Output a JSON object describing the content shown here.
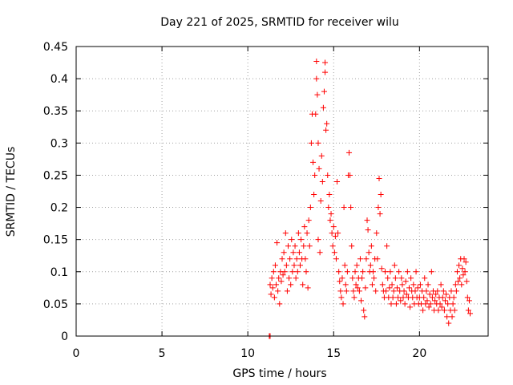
{
  "chart_data": {
    "type": "scatter",
    "title": "Day 221 of 2025, SRMTID for receiver wilu",
    "xlabel": "GPS time / hours",
    "ylabel": "SRMTID / TECUs",
    "xlim": [
      0,
      24
    ],
    "ylim": [
      0,
      0.45
    ],
    "xticks": [
      0,
      5,
      10,
      15,
      20
    ],
    "xtick_labels": [
      "0",
      "5",
      "10",
      "15",
      "20"
    ],
    "yticks": [
      0,
      0.05,
      0.1,
      0.15,
      0.2,
      0.25,
      0.3,
      0.35,
      0.4,
      0.45
    ],
    "ytick_labels": [
      "0",
      "0.05",
      "0.1",
      "0.15",
      "0.2",
      "0.25",
      "0.3",
      "0.35",
      "0.4",
      "0.45"
    ],
    "grid": true,
    "marker": "+",
    "color": "#ff0000",
    "series": [
      {
        "name": "SRMTID",
        "points": [
          [
            11.25,
            0.0
          ],
          [
            11.3,
            0.0
          ],
          [
            11.3,
            0.08
          ],
          [
            11.35,
            0.065
          ],
          [
            11.4,
            0.09
          ],
          [
            11.45,
            0.075
          ],
          [
            11.5,
            0.1
          ],
          [
            11.55,
            0.06
          ],
          [
            11.6,
            0.11
          ],
          [
            11.65,
            0.08
          ],
          [
            11.7,
            0.145
          ],
          [
            11.75,
            0.07
          ],
          [
            11.8,
            0.09
          ],
          [
            11.85,
            0.05
          ],
          [
            11.9,
            0.1
          ],
          [
            11.95,
            0.085
          ],
          [
            12.0,
            0.12
          ],
          [
            12.05,
            0.095
          ],
          [
            12.1,
            0.13
          ],
          [
            12.15,
            0.1
          ],
          [
            12.2,
            0.16
          ],
          [
            12.25,
            0.11
          ],
          [
            12.3,
            0.07
          ],
          [
            12.35,
            0.14
          ],
          [
            12.4,
            0.09
          ],
          [
            12.45,
            0.12
          ],
          [
            12.5,
            0.08
          ],
          [
            12.55,
            0.15
          ],
          [
            12.6,
            0.1
          ],
          [
            12.65,
            0.13
          ],
          [
            12.7,
            0.11
          ],
          [
            12.75,
            0.14
          ],
          [
            12.8,
            0.09
          ],
          [
            12.85,
            0.12
          ],
          [
            12.9,
            0.1
          ],
          [
            12.95,
            0.16
          ],
          [
            13.0,
            0.13
          ],
          [
            13.05,
            0.11
          ],
          [
            13.1,
            0.15
          ],
          [
            13.15,
            0.12
          ],
          [
            13.2,
            0.08
          ],
          [
            13.25,
            0.14
          ],
          [
            13.3,
            0.17
          ],
          [
            13.35,
            0.12
          ],
          [
            13.4,
            0.1
          ],
          [
            13.45,
            0.16
          ],
          [
            13.5,
            0.075
          ],
          [
            13.55,
            0.18
          ],
          [
            13.6,
            0.14
          ],
          [
            13.65,
            0.2
          ],
          [
            13.7,
            0.3
          ],
          [
            13.75,
            0.345
          ],
          [
            13.8,
            0.27
          ],
          [
            13.85,
            0.22
          ],
          [
            13.9,
            0.25
          ],
          [
            13.95,
            0.345
          ],
          [
            14.0,
            0.427
          ],
          [
            14.0,
            0.4
          ],
          [
            14.05,
            0.375
          ],
          [
            14.1,
            0.3
          ],
          [
            14.1,
            0.15
          ],
          [
            14.15,
            0.26
          ],
          [
            14.2,
            0.13
          ],
          [
            14.25,
            0.21
          ],
          [
            14.3,
            0.28
          ],
          [
            14.35,
            0.24
          ],
          [
            14.4,
            0.355
          ],
          [
            14.45,
            0.38
          ],
          [
            14.5,
            0.425
          ],
          [
            14.5,
            0.41
          ],
          [
            14.55,
            0.32
          ],
          [
            14.6,
            0.33
          ],
          [
            14.65,
            0.25
          ],
          [
            14.7,
            0.2
          ],
          [
            14.75,
            0.22
          ],
          [
            14.8,
            0.18
          ],
          [
            14.85,
            0.19
          ],
          [
            14.9,
            0.16
          ],
          [
            14.95,
            0.14
          ],
          [
            15.0,
            0.17
          ],
          [
            15.05,
            0.13
          ],
          [
            15.1,
            0.155
          ],
          [
            15.15,
            0.12
          ],
          [
            15.2,
            0.24
          ],
          [
            15.25,
            0.16
          ],
          [
            15.3,
            0.1
          ],
          [
            15.35,
            0.085
          ],
          [
            15.4,
            0.07
          ],
          [
            15.45,
            0.06
          ],
          [
            15.5,
            0.09
          ],
          [
            15.55,
            0.05
          ],
          [
            15.6,
            0.2
          ],
          [
            15.65,
            0.11
          ],
          [
            15.7,
            0.08
          ],
          [
            15.75,
            0.07
          ],
          [
            15.8,
            0.1
          ],
          [
            15.85,
            0.25
          ],
          [
            15.9,
            0.285
          ],
          [
            15.95,
            0.25
          ],
          [
            16.0,
            0.2
          ],
          [
            16.05,
            0.14
          ],
          [
            16.1,
            0.09
          ],
          [
            16.15,
            0.07
          ],
          [
            16.2,
            0.06
          ],
          [
            16.25,
            0.1
          ],
          [
            16.3,
            0.08
          ],
          [
            16.35,
            0.11
          ],
          [
            16.4,
            0.075
          ],
          [
            16.45,
            0.09
          ],
          [
            16.5,
            0.07
          ],
          [
            16.55,
            0.12
          ],
          [
            16.6,
            0.055
          ],
          [
            16.65,
            0.09
          ],
          [
            16.7,
            0.1
          ],
          [
            16.75,
            0.04
          ],
          [
            16.8,
            0.03
          ],
          [
            16.85,
            0.075
          ],
          [
            16.9,
            0.12
          ],
          [
            16.95,
            0.18
          ],
          [
            17.0,
            0.165
          ],
          [
            17.05,
            0.13
          ],
          [
            17.1,
            0.1
          ],
          [
            17.15,
            0.11
          ],
          [
            17.2,
            0.14
          ],
          [
            17.25,
            0.08
          ],
          [
            17.3,
            0.1
          ],
          [
            17.35,
            0.09
          ],
          [
            17.4,
            0.12
          ],
          [
            17.45,
            0.07
          ],
          [
            17.5,
            0.16
          ],
          [
            17.55,
            0.12
          ],
          [
            17.6,
            0.2
          ],
          [
            17.65,
            0.245
          ],
          [
            17.7,
            0.19
          ],
          [
            17.75,
            0.22
          ],
          [
            17.8,
            0.105
          ],
          [
            17.85,
            0.08
          ],
          [
            17.9,
            0.07
          ],
          [
            17.95,
            0.06
          ],
          [
            18.0,
            0.1
          ],
          [
            18.05,
            0.07
          ],
          [
            18.1,
            0.14
          ],
          [
            18.15,
            0.09
          ],
          [
            18.2,
            0.06
          ],
          [
            18.25,
            0.075
          ],
          [
            18.3,
            0.1
          ],
          [
            18.35,
            0.05
          ],
          [
            18.4,
            0.08
          ],
          [
            18.45,
            0.06
          ],
          [
            18.5,
            0.07
          ],
          [
            18.55,
            0.11
          ],
          [
            18.6,
            0.09
          ],
          [
            18.65,
            0.05
          ],
          [
            18.7,
            0.075
          ],
          [
            18.75,
            0.06
          ],
          [
            18.8,
            0.1
          ],
          [
            18.85,
            0.07
          ],
          [
            18.9,
            0.055
          ],
          [
            18.95,
            0.09
          ],
          [
            19.0,
            0.08
          ],
          [
            19.05,
            0.06
          ],
          [
            19.1,
            0.07
          ],
          [
            19.15,
            0.05
          ],
          [
            19.2,
            0.085
          ],
          [
            19.25,
            0.065
          ],
          [
            19.3,
            0.1
          ],
          [
            19.35,
            0.06
          ],
          [
            19.4,
            0.075
          ],
          [
            19.45,
            0.045
          ],
          [
            19.5,
            0.09
          ],
          [
            19.55,
            0.07
          ],
          [
            19.6,
            0.06
          ],
          [
            19.65,
            0.08
          ],
          [
            19.7,
            0.05
          ],
          [
            19.75,
            0.07
          ],
          [
            19.8,
            0.1
          ],
          [
            19.85,
            0.06
          ],
          [
            19.9,
            0.075
          ],
          [
            19.95,
            0.05
          ],
          [
            20.0,
            0.06
          ],
          [
            20.05,
            0.08
          ],
          [
            20.1,
            0.05
          ],
          [
            20.15,
            0.07
          ],
          [
            20.2,
            0.04
          ],
          [
            20.25,
            0.06
          ],
          [
            20.3,
            0.09
          ],
          [
            20.35,
            0.05
          ],
          [
            20.4,
            0.07
          ],
          [
            20.45,
            0.055
          ],
          [
            20.5,
            0.08
          ],
          [
            20.55,
            0.045
          ],
          [
            20.6,
            0.065
          ],
          [
            20.65,
            0.05
          ],
          [
            20.7,
            0.1
          ],
          [
            20.75,
            0.06
          ],
          [
            20.8,
            0.07
          ],
          [
            20.85,
            0.04
          ],
          [
            20.9,
            0.055
          ],
          [
            20.95,
            0.065
          ],
          [
            21.0,
            0.05
          ],
          [
            21.05,
            0.07
          ],
          [
            21.1,
            0.04
          ],
          [
            21.15,
            0.06
          ],
          [
            21.2,
            0.05
          ],
          [
            21.25,
            0.08
          ],
          [
            21.3,
            0.045
          ],
          [
            21.35,
            0.06
          ],
          [
            21.4,
            0.07
          ],
          [
            21.45,
            0.04
          ],
          [
            21.5,
            0.055
          ],
          [
            21.55,
            0.065
          ],
          [
            21.6,
            0.03
          ],
          [
            21.65,
            0.05
          ],
          [
            21.7,
            0.02
          ],
          [
            21.75,
            0.06
          ],
          [
            21.8,
            0.04
          ],
          [
            21.85,
            0.07
          ],
          [
            21.9,
            0.03
          ],
          [
            21.95,
            0.05
          ],
          [
            22.0,
            0.06
          ],
          [
            22.05,
            0.04
          ],
          [
            22.1,
            0.08
          ],
          [
            22.15,
            0.07
          ],
          [
            22.2,
            0.1
          ],
          [
            22.25,
            0.085
          ],
          [
            22.3,
            0.11
          ],
          [
            22.35,
            0.09
          ],
          [
            22.4,
            0.12
          ],
          [
            22.45,
            0.08
          ],
          [
            22.5,
            0.105
          ],
          [
            22.55,
            0.095
          ],
          [
            22.6,
            0.12
          ],
          [
            22.65,
            0.1
          ],
          [
            22.7,
            0.115
          ],
          [
            22.75,
            0.085
          ],
          [
            22.8,
            0.06
          ],
          [
            22.85,
            0.04
          ],
          [
            22.9,
            0.055
          ],
          [
            22.95,
            0.035
          ]
        ]
      }
    ]
  }
}
